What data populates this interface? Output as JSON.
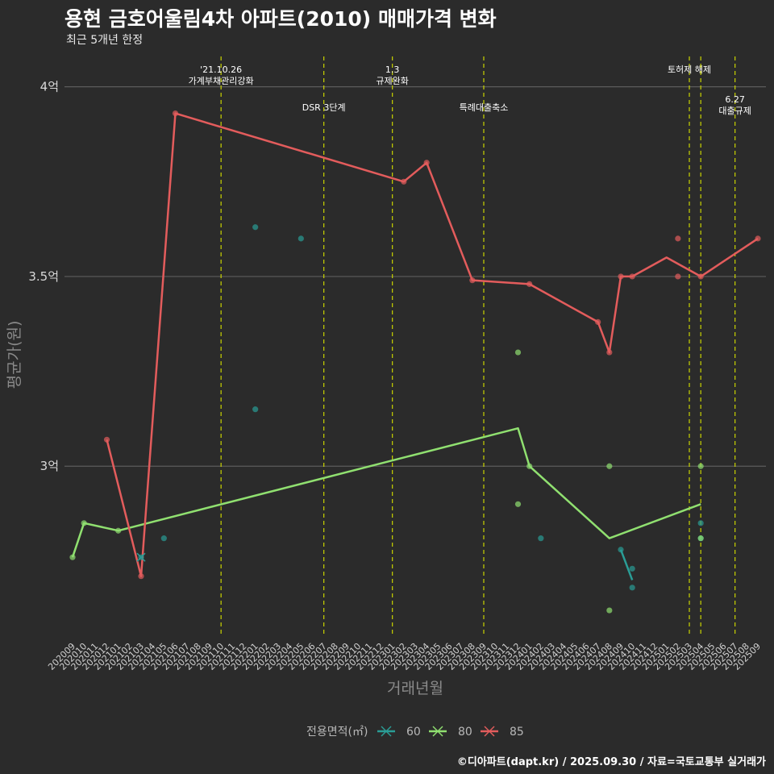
{
  "header": {
    "title": "용현 금호어울림4차 아파트(2010) 매매가격 변화",
    "subtitle": "최근 5개년 한정"
  },
  "footer": {
    "caption": "©디아파트(dapt.kr) / 2025.09.30 / 자료=국토교통부 실거래가"
  },
  "chart_data": {
    "type": "line",
    "title": "용현 금호어울림4차 아파트(2010) 매매가격 변화",
    "xlabel": "거래년월",
    "ylabel": "평균가(원)",
    "ylim": [
      2.55,
      4.08
    ],
    "y_ticks": [
      {
        "value": 3.0,
        "label": "3억"
      },
      {
        "value": 3.5,
        "label": "3.5억"
      },
      {
        "value": 4.0,
        "label": "4억"
      }
    ],
    "x_categories": [
      "202009",
      "202010",
      "202011",
      "202012",
      "202101",
      "202102",
      "202103",
      "202104",
      "202105",
      "202106",
      "202107",
      "202108",
      "202109",
      "202110",
      "202111",
      "202112",
      "202201",
      "202202",
      "202203",
      "202204",
      "202205",
      "202206",
      "202207",
      "202208",
      "202209",
      "202210",
      "202211",
      "202212",
      "202301",
      "202302",
      "202303",
      "202304",
      "202305",
      "202306",
      "202307",
      "202308",
      "202309",
      "202310",
      "202311",
      "202312",
      "202401",
      "202402",
      "202403",
      "202404",
      "202405",
      "202406",
      "202407",
      "202408",
      "202409",
      "202410",
      "202411",
      "202412",
      "202501",
      "202502",
      "202503",
      "202504",
      "202505",
      "202506",
      "202507",
      "202508",
      "202509"
    ],
    "legend_title": "전용면적(㎡)",
    "series": [
      {
        "name": "60",
        "color": "#2a9d96",
        "line": [
          [
            "202409",
            2.78
          ],
          [
            "202410",
            2.7
          ]
        ],
        "points": [
          [
            "202103",
            2.76
          ],
          [
            "202105",
            2.81
          ],
          [
            "202201",
            3.63
          ],
          [
            "202201",
            3.15
          ],
          [
            "202205",
            3.6
          ],
          [
            "202402",
            2.81
          ],
          [
            "202409",
            2.78
          ],
          [
            "202410",
            2.73
          ],
          [
            "202410",
            2.68
          ],
          [
            "202504",
            2.85
          ],
          [
            "202504",
            2.81
          ]
        ]
      },
      {
        "name": "80",
        "color": "#90e070",
        "line": [
          [
            "202009",
            2.76
          ],
          [
            "202010",
            2.85
          ],
          [
            "202101",
            2.83
          ],
          [
            "202312",
            3.1
          ],
          [
            "202401",
            3.0
          ],
          [
            "202408",
            2.81
          ],
          [
            "202504",
            2.9
          ]
        ],
        "points": [
          [
            "202009",
            2.76
          ],
          [
            "202010",
            2.85
          ],
          [
            "202101",
            2.83
          ],
          [
            "202312",
            3.3
          ],
          [
            "202312",
            2.9
          ],
          [
            "202401",
            3.0
          ],
          [
            "202408",
            3.0
          ],
          [
            "202408",
            2.62
          ],
          [
            "202504",
            3.0
          ],
          [
            "202504",
            2.81
          ]
        ]
      },
      {
        "name": "85",
        "color": "#e35c5c",
        "line": [
          [
            "202012",
            3.07
          ],
          [
            "202103",
            2.71
          ],
          [
            "202106",
            3.93
          ],
          [
            "202302",
            3.75
          ],
          [
            "202304",
            3.8
          ],
          [
            "202308",
            3.49
          ],
          [
            "202401",
            3.48
          ],
          [
            "202407",
            3.38
          ],
          [
            "202408",
            3.3
          ],
          [
            "202409",
            3.5
          ],
          [
            "202410",
            3.5
          ],
          [
            "202501",
            3.55
          ],
          [
            "202504",
            3.5
          ],
          [
            "202509",
            3.6
          ]
        ],
        "points": [
          [
            "202012",
            3.07
          ],
          [
            "202103",
            2.71
          ],
          [
            "202106",
            3.93
          ],
          [
            "202302",
            3.75
          ],
          [
            "202304",
            3.8
          ],
          [
            "202308",
            3.49
          ],
          [
            "202401",
            3.48
          ],
          [
            "202407",
            3.38
          ],
          [
            "202408",
            3.3
          ],
          [
            "202409",
            3.5
          ],
          [
            "202410",
            3.5
          ],
          [
            "202502",
            3.6
          ],
          [
            "202502",
            3.5
          ],
          [
            "202504",
            3.5
          ],
          [
            "202509",
            3.6
          ]
        ]
      }
    ],
    "events": [
      {
        "month": "202110",
        "label": "'21.10.26\n가계부채관리강화",
        "row": 0
      },
      {
        "month": "202207",
        "label": "DSR 3단계",
        "row": 1
      },
      {
        "month": "202301",
        "label": "1.3\n규제완화",
        "row": 0
      },
      {
        "month": "202309",
        "label": "특례대출축소",
        "row": 1
      },
      {
        "month": "202503",
        "label": "토허제 해제",
        "row": 0
      },
      {
        "month": "202504",
        "label": "",
        "row": 0
      },
      {
        "month": "202507",
        "label": "6.27\n대출규제",
        "row": 2
      }
    ]
  }
}
